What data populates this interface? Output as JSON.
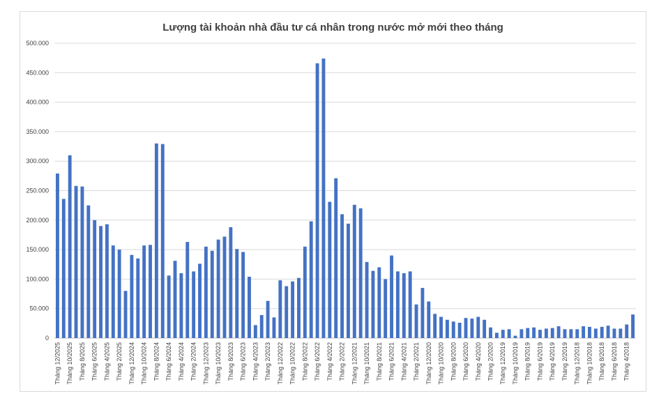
{
  "chart_data": {
    "type": "bar",
    "title": "Lượng tài khoản nhà đầu tư cá nhân trong nước mở mới theo tháng",
    "xlabel": "",
    "ylabel": "",
    "ylim": [
      0,
      500000
    ],
    "yticks": [
      "0",
      "50.000",
      "100.000",
      "150.000",
      "200.000",
      "250.000",
      "300.000",
      "350.000",
      "400.000",
      "450.000",
      "500.000"
    ],
    "grid": true,
    "bar_color": "#4472C4",
    "categories": [
      "Tháng 12/2025",
      "Tháng 11/2025",
      "Tháng 10/2025",
      "Tháng 9/2025",
      "Tháng 8/2025",
      "Tháng 7/2025",
      "Tháng 6/2025",
      "Tháng 5/2025",
      "Tháng 4/2025",
      "Tháng 3/2025",
      "Tháng 2/2025",
      "Tháng 1/2025",
      "Tháng 12/2024",
      "Tháng 11/2024",
      "Tháng 10/2024",
      "Tháng 9/2024",
      "Tháng 8/2024",
      "Tháng 7/2024",
      "Tháng 6/2024",
      "Tháng 5/2024",
      "Tháng 4/2024",
      "Tháng 3/2024",
      "Tháng 2/2024",
      "Tháng 1/2024",
      "Tháng 12/2023",
      "Tháng 11/2023",
      "Tháng 10/2023",
      "Tháng 9/2023",
      "Tháng 8/2023",
      "Tháng 7/2023",
      "Tháng 6/2023",
      "Tháng 5/2023",
      "Tháng 4/2023",
      "Tháng 3/2023",
      "Tháng 2/2023",
      "Tháng 1/2023",
      "Tháng 12/2022",
      "Tháng 11/2022",
      "Tháng 10/2022",
      "Tháng 9/2022",
      "Tháng 8/2022",
      "Tháng 7/2022",
      "Tháng 6/2022",
      "Tháng 5/2022",
      "Tháng 4/2022",
      "Tháng 3/2022",
      "Tháng 2/2022",
      "Tháng 1/2022",
      "Tháng 12/2021",
      "Tháng 11/2021",
      "Tháng 10/2021",
      "Tháng 9/2021",
      "Tháng 8/2021",
      "Tháng 7/2021",
      "Tháng 6/2021",
      "Tháng 5/2021",
      "Tháng 4/2021",
      "Tháng 3/2021",
      "Tháng 2/2021",
      "Tháng 1/2021",
      "Tháng 12/2020",
      "Tháng 11/2020",
      "Tháng 10/2020",
      "Tháng 9/2020",
      "Tháng 8/2020",
      "Tháng 7/2020",
      "Tháng 6/2020",
      "Tháng 5/2020",
      "Tháng 4/2020",
      "Tháng 3/2020",
      "Tháng 2/2020",
      "Tháng 1/2020",
      "Tháng 12/2019",
      "Tháng 11/2019",
      "Tháng 10/2019",
      "Tháng 9/2019",
      "Tháng 8/2019",
      "Tháng 7/2019",
      "Tháng 6/2019",
      "Tháng 5/2019",
      "Tháng 4/2019",
      "Tháng 3/2019",
      "Tháng 2/2019",
      "Tháng 1/2019",
      "Tháng 12/2018",
      "Tháng 11/2018",
      "Tháng 10/2018",
      "Tháng 9/2018",
      "Tháng 8/2018",
      "Tháng 7/2018",
      "Tháng 6/2018",
      "Tháng 5/2018",
      "Tháng 4/2018",
      "Tháng 3/2018"
    ],
    "values": [
      279000,
      236000,
      310000,
      258000,
      257000,
      225000,
      200000,
      190000,
      193000,
      157000,
      150000,
      80000,
      141000,
      135000,
      157000,
      158000,
      330000,
      329000,
      106000,
      131000,
      110000,
      163000,
      113000,
      126000,
      155000,
      148000,
      167000,
      172000,
      188000,
      151000,
      146000,
      104000,
      22000,
      39000,
      63000,
      35000,
      98000,
      88000,
      96000,
      102000,
      155000,
      198000,
      466000,
      474000,
      231000,
      271000,
      210000,
      194000,
      226000,
      220000,
      129000,
      114000,
      120000,
      100000,
      140000,
      113000,
      110000,
      113000,
      57000,
      85000,
      62000,
      41000,
      36000,
      31000,
      28000,
      26000,
      34000,
      33000,
      36000,
      31000,
      18000,
      9000,
      14000,
      15000,
      4000,
      15000,
      17000,
      18000,
      14000,
      16000,
      17000,
      20000,
      15000,
      15000,
      15000,
      20000,
      19000,
      16000,
      19000,
      21000,
      16000,
      16000,
      23000,
      40000
    ]
  }
}
